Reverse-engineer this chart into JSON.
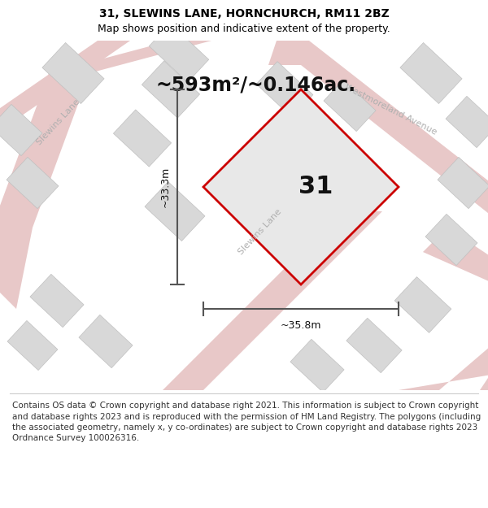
{
  "title_line1": "31, SLEWINS LANE, HORNCHURCH, RM11 2BZ",
  "title_line2": "Map shows position and indicative extent of the property.",
  "area_label": "~593m²/~0.146ac.",
  "property_number": "31",
  "dim_vertical": "~33.3m",
  "dim_horizontal": "~35.8m",
  "footer_text": "Contains OS data © Crown copyright and database right 2021. This information is subject to Crown copyright and database rights 2023 and is reproduced with the permission of HM Land Registry. The polygons (including the associated geometry, namely x, y co-ordinates) are subject to Crown copyright and database rights 2023 Ordnance Survey 100026316.",
  "map_bg": "#f0efeb",
  "road_color": "#e8c8c8",
  "building_color": "#d8d8d8",
  "building_edge": "#c0c0c0",
  "property_fill": "#e8e8e8",
  "property_edge": "#cc0000",
  "dim_color": "#555555",
  "street_label_color": "#b0b0b0",
  "title_fontsize": 10,
  "subtitle_fontsize": 9,
  "area_fontsize": 17,
  "number_fontsize": 22,
  "dim_fontsize": 9,
  "footer_fontsize": 7.5
}
